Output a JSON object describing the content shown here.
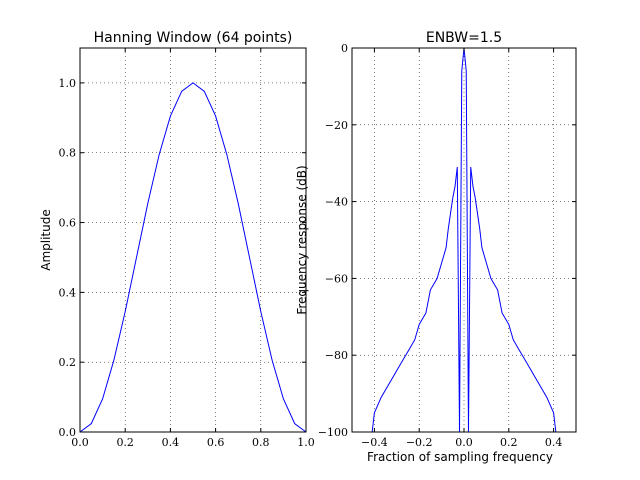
{
  "chart_data": [
    {
      "type": "line",
      "title": "Hanning Window (64 points)",
      "xlabel": "",
      "ylabel": "Amplitude",
      "xlim": [
        0.0,
        1.0
      ],
      "ylim": [
        0.0,
        1.1
      ],
      "x_ticks": [
        0.0,
        0.2,
        0.4,
        0.6,
        0.8,
        1.0
      ],
      "x_tick_labels": [
        "0.0",
        "0.2",
        "0.4",
        "0.6",
        "0.8",
        "1.0"
      ],
      "y_ticks": [
        0.0,
        0.2,
        0.4,
        0.6,
        0.8,
        1.0
      ],
      "y_tick_labels": [
        "0.0",
        "0.2",
        "0.4",
        "0.6",
        "0.8",
        "1.0"
      ],
      "grid": true,
      "series": [
        {
          "color": "#0000ff",
          "x": [
            0.0,
            0.05,
            0.1,
            0.15,
            0.2,
            0.25,
            0.3,
            0.35,
            0.4,
            0.45,
            0.5,
            0.55,
            0.6,
            0.65,
            0.7,
            0.75,
            0.8,
            0.85,
            0.9,
            0.95,
            1.0
          ],
          "y": [
            0.0,
            0.024,
            0.095,
            0.206,
            0.345,
            0.5,
            0.655,
            0.794,
            0.905,
            0.976,
            1.0,
            0.976,
            0.905,
            0.794,
            0.655,
            0.5,
            0.345,
            0.206,
            0.095,
            0.024,
            0.0
          ]
        }
      ]
    },
    {
      "type": "line",
      "title": "ENBW=1.5",
      "xlabel": "Fraction of sampling frequency",
      "ylabel": "Frequency response (dB)",
      "xlim": [
        -0.5,
        0.5
      ],
      "ylim": [
        -100,
        0
      ],
      "x_ticks": [
        -0.4,
        -0.2,
        0.0,
        0.2,
        0.4
      ],
      "x_tick_labels": [
        "−0.4",
        "−0.2",
        "0.0",
        "0.2",
        "0.4"
      ],
      "y_ticks": [
        -100,
        -80,
        -60,
        -40,
        -20,
        0
      ],
      "y_tick_labels": [
        "−100",
        "−80",
        "−60",
        "−40",
        "−20",
        "0"
      ],
      "grid": true,
      "series": [
        {
          "color": "#0000ff",
          "x": [
            -0.5,
            -0.48,
            -0.45,
            -0.43,
            -0.41,
            -0.4,
            -0.37,
            -0.35,
            -0.32,
            -0.3,
            -0.27,
            -0.25,
            -0.22,
            -0.2,
            -0.17,
            -0.15,
            -0.12,
            -0.1,
            -0.08,
            -0.07,
            -0.06,
            -0.05,
            -0.04,
            -0.03,
            -0.02,
            -0.01,
            0.0,
            0.01,
            0.02,
            0.03,
            0.04,
            0.05,
            0.06,
            0.07,
            0.08,
            0.1,
            0.12,
            0.15,
            0.17,
            0.2,
            0.22,
            0.25,
            0.27,
            0.3,
            0.32,
            0.35,
            0.37,
            0.4,
            0.41,
            0.43,
            0.45,
            0.48,
            0.5
          ],
          "y": [
            -100,
            -100,
            -100,
            -100,
            -100,
            -95,
            -91,
            -89,
            -86,
            -84,
            -81,
            -79,
            -76,
            -72,
            -69,
            -63,
            -60,
            -56,
            -52,
            -47,
            -43,
            -39,
            -36,
            -31,
            -100,
            -6,
            0,
            -6,
            -100,
            -31,
            -36,
            -39,
            -43,
            -47,
            -52,
            -56,
            -60,
            -63,
            -69,
            -72,
            -76,
            -79,
            -81,
            -84,
            -86,
            -89,
            -91,
            -95,
            -100,
            -100,
            -100,
            -100,
            -100
          ]
        }
      ]
    }
  ]
}
